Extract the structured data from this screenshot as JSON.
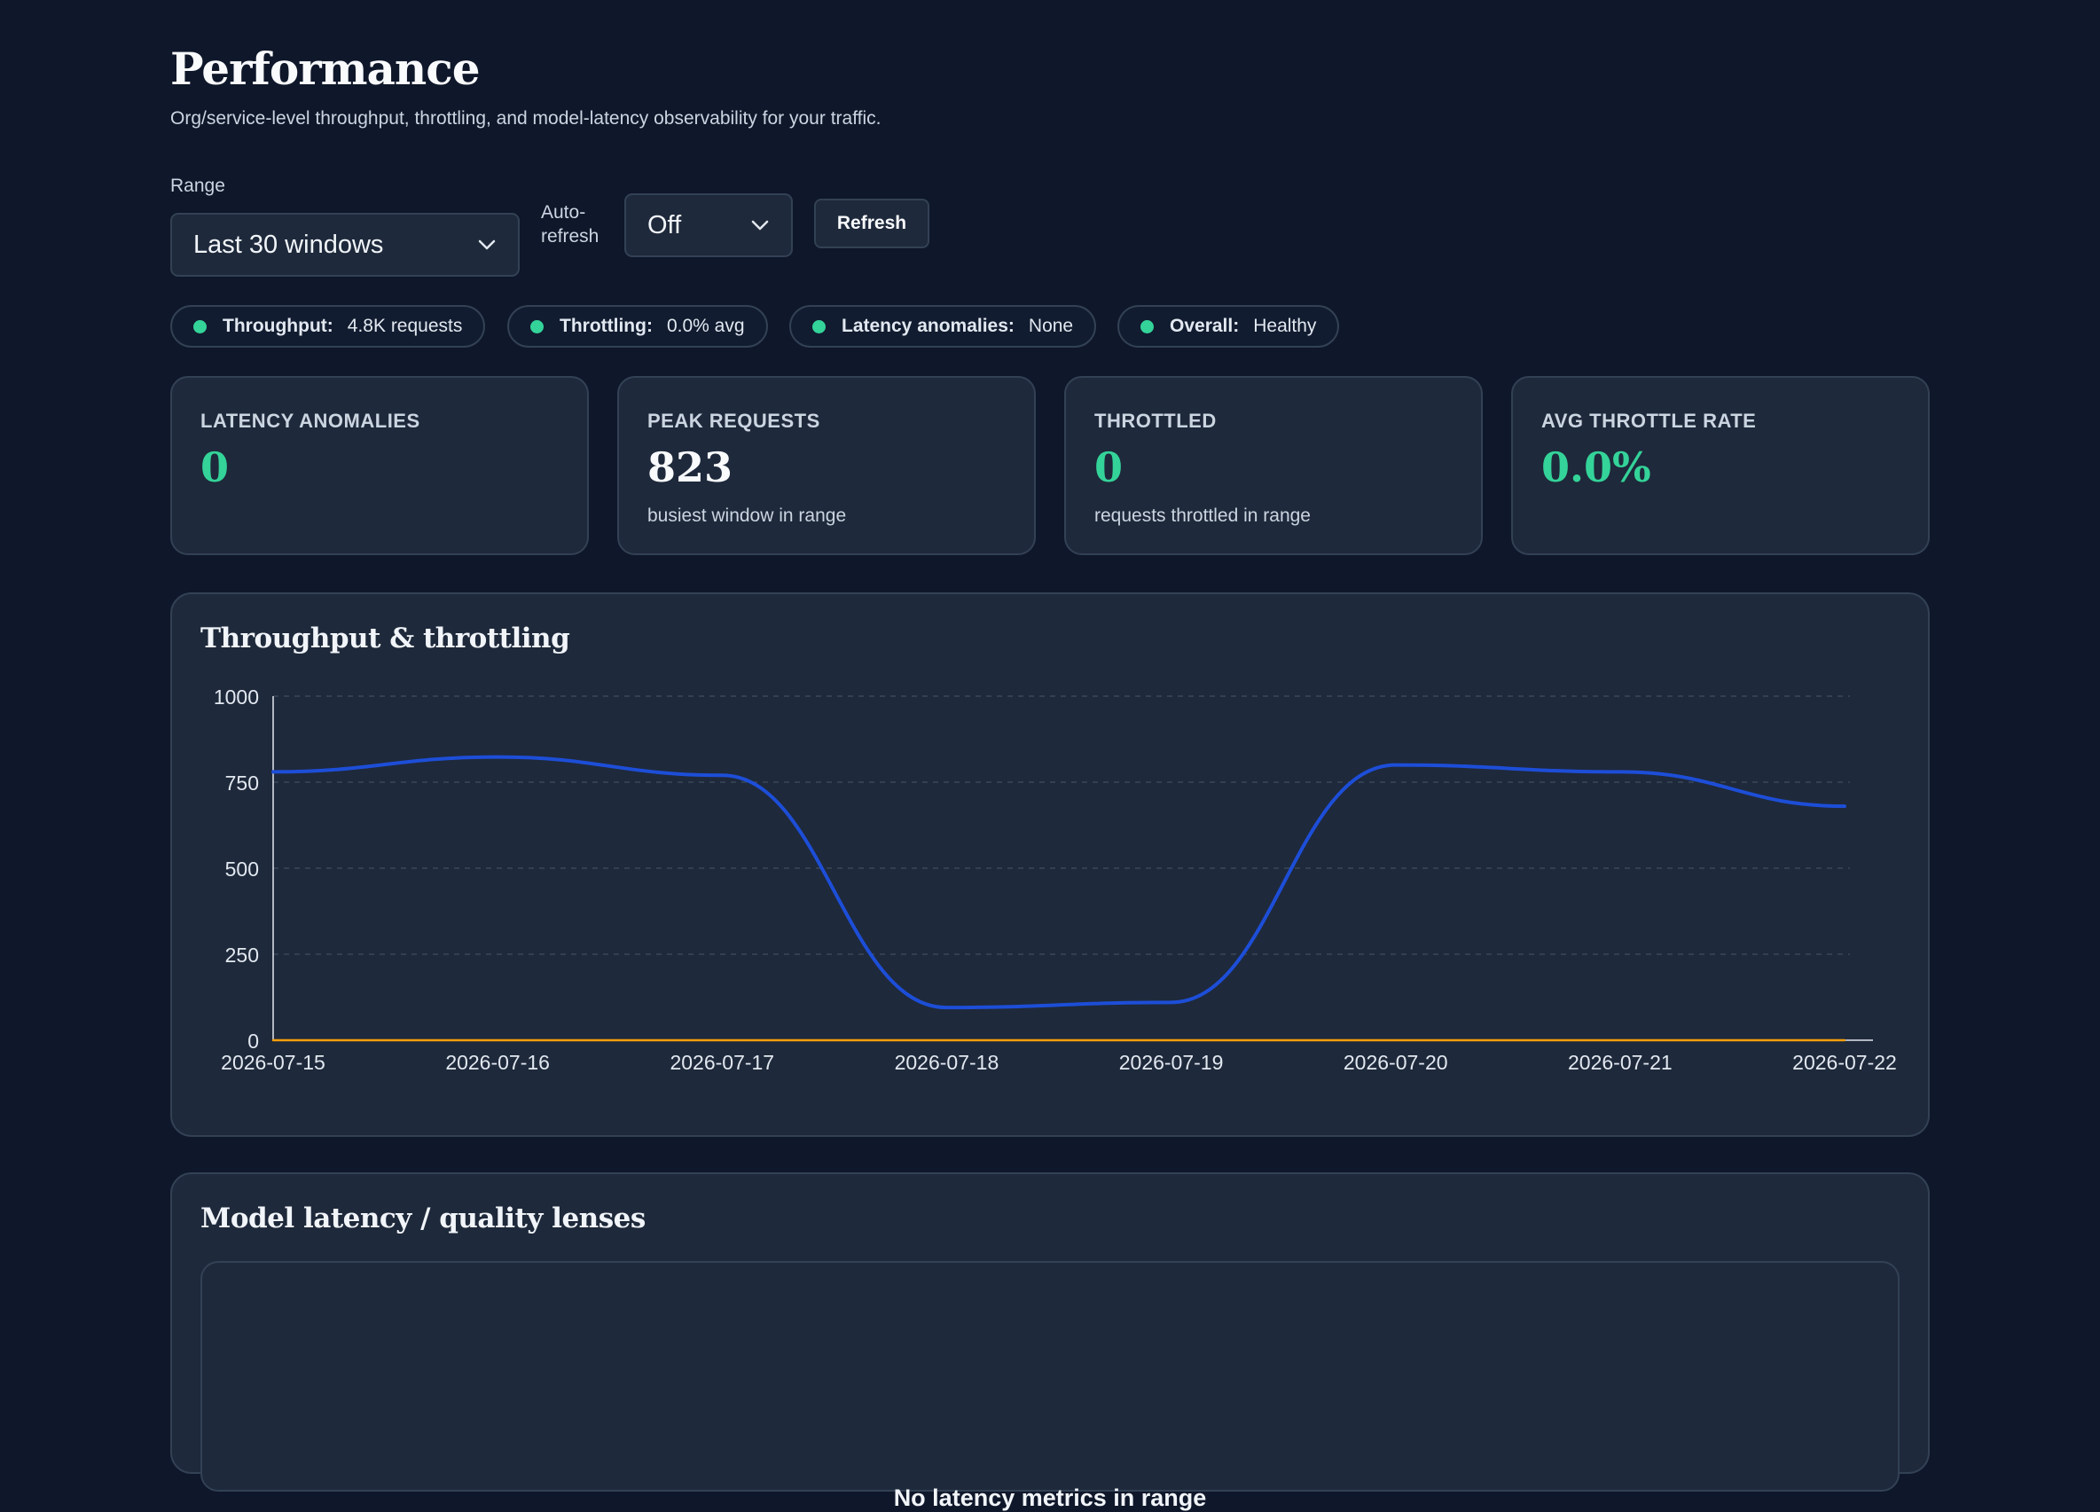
{
  "header": {
    "title": "Performance",
    "subtitle": "Org/service-level throughput, throttling, and model-latency observability for your traffic."
  },
  "controls": {
    "range_label": "Range",
    "range_value": "Last 30 windows",
    "auto_refresh_label": "Auto-refresh",
    "auto_refresh_label_line1": "Auto-",
    "auto_refresh_label_line2": "refresh",
    "auto_refresh_value": "Off",
    "refresh_button": "Refresh"
  },
  "status_pills": [
    {
      "key": "Throughput:",
      "value": "4.8K requests",
      "status_color": "#34d399"
    },
    {
      "key": "Throttling:",
      "value": "0.0% avg",
      "status_color": "#34d399"
    },
    {
      "key": "Latency anomalies:",
      "value": "None",
      "status_color": "#34d399"
    },
    {
      "key": "Overall:",
      "value": "Healthy",
      "status_color": "#34d399"
    }
  ],
  "stat_cards": [
    {
      "label": "LATENCY ANOMALIES",
      "value": "0",
      "sub": ""
    },
    {
      "label": "PEAK REQUESTS",
      "value": "823",
      "sub": "busiest window in range"
    },
    {
      "label": "THROTTLED",
      "value": "0",
      "sub": "requests throttled in range"
    },
    {
      "label": "AVG THROTTLE RATE",
      "value": "0.0%",
      "sub": ""
    }
  ],
  "throughput_panel": {
    "title": "Throughput & throttling"
  },
  "chart_data": {
    "type": "line",
    "title": "Throughput & throttling",
    "xlabel": "",
    "ylabel": "",
    "ylim": [
      0,
      1000
    ],
    "yticks": [
      0,
      250,
      500,
      750,
      1000
    ],
    "x": [
      "2026-07-15",
      "2026-07-16",
      "2026-07-17",
      "2026-07-18",
      "2026-07-19",
      "2026-07-20",
      "2026-07-21",
      "2026-07-22"
    ],
    "grid": true,
    "series": [
      {
        "values": [
          780,
          823,
          770,
          95,
          110,
          800,
          780,
          680
        ],
        "color": "#1d4ed8"
      },
      {
        "values": [
          0,
          0,
          0,
          0,
          0,
          0,
          0,
          0
        ],
        "color": "#f59e0b"
      }
    ]
  },
  "lens_panel": {
    "title": "Model latency / quality lenses",
    "empty_message": "No latency metrics in range"
  },
  "colors": {
    "background": "#0f172a",
    "card": "#1e293b",
    "border": "#334155",
    "accent_green": "#34d399",
    "throughput_line": "#1d4ed8",
    "throttle_line": "#f59e0b"
  }
}
